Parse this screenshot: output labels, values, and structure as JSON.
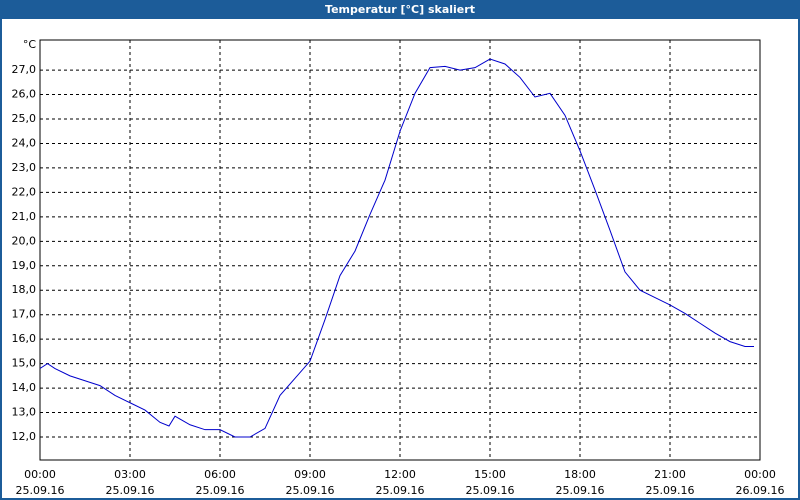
{
  "chart_data": {
    "type": "line",
    "title": "Temperatur [°C] skaliert",
    "y_unit": "°C",
    "xlim": [
      0,
      24
    ],
    "xticks": [
      {
        "value": 0,
        "label": "00:00"
      },
      {
        "value": 3,
        "label": "03:00"
      },
      {
        "value": 6,
        "label": "06:00"
      },
      {
        "value": 9,
        "label": "09:00"
      },
      {
        "value": 12,
        "label": "12:00"
      },
      {
        "value": 15,
        "label": "15:00"
      },
      {
        "value": 18,
        "label": "18:00"
      },
      {
        "value": 21,
        "label": "21:00"
      },
      {
        "value": 24,
        "label": "00:00"
      }
    ],
    "xtick_dates": [
      "25.09.16",
      "25.09.16",
      "25.09.16",
      "25.09.16",
      "25.09.16",
      "25.09.16",
      "25.09.16",
      "25.09.16",
      "26.09.16"
    ],
    "ylim": [
      11.06,
      28.23
    ],
    "yticks": [
      {
        "value": 12,
        "label": "12,0"
      },
      {
        "value": 13,
        "label": "13,0"
      },
      {
        "value": 14,
        "label": "14,0"
      },
      {
        "value": 15,
        "label": "15,0"
      },
      {
        "value": 16,
        "label": "16,0"
      },
      {
        "value": 17,
        "label": "17,0"
      },
      {
        "value": 18,
        "label": "18,0"
      },
      {
        "value": 19,
        "label": "19,0"
      },
      {
        "value": 20,
        "label": "20,0"
      },
      {
        "value": 21,
        "label": "21,0"
      },
      {
        "value": 22,
        "label": "22,0"
      },
      {
        "value": 23,
        "label": "23,0"
      },
      {
        "value": 24,
        "label": "24,0"
      },
      {
        "value": 25,
        "label": "25,0"
      },
      {
        "value": 26,
        "label": "26,0"
      },
      {
        "value": 27,
        "label": "27,0"
      }
    ],
    "grid": true,
    "series": [
      {
        "color": "#0000cc",
        "x": [
          0,
          0.25,
          0.5,
          1,
          1.5,
          2,
          2.5,
          3,
          3.5,
          4,
          4.3,
          4.5,
          5,
          5.5,
          6,
          6.5,
          7,
          7.5,
          8,
          8.5,
          9,
          9.5,
          10,
          10.5,
          11,
          11.5,
          12,
          12.5,
          13,
          13.5,
          14,
          14.5,
          15,
          15.5,
          16,
          16.5,
          17,
          17.5,
          18,
          18.5,
          19,
          19.5,
          20,
          20.5,
          21,
          21.5,
          22,
          22.5,
          23,
          23.5,
          23.8
        ],
        "values": [
          14.8,
          15.0,
          14.8,
          14.5,
          14.3,
          14.1,
          13.7,
          13.4,
          13.1,
          12.6,
          12.45,
          12.85,
          12.5,
          12.3,
          12.3,
          12.0,
          12.0,
          12.35,
          13.7,
          14.4,
          15.1,
          16.8,
          18.6,
          19.6,
          21.1,
          22.5,
          24.5,
          26.05,
          27.1,
          27.15,
          27.0,
          27.1,
          27.45,
          27.25,
          26.7,
          25.9,
          26.05,
          25.15,
          23.7,
          22.1,
          20.45,
          18.75,
          18.0,
          17.7,
          17.4,
          17.05,
          16.65,
          16.25,
          15.9,
          15.7,
          15.7
        ]
      }
    ]
  }
}
